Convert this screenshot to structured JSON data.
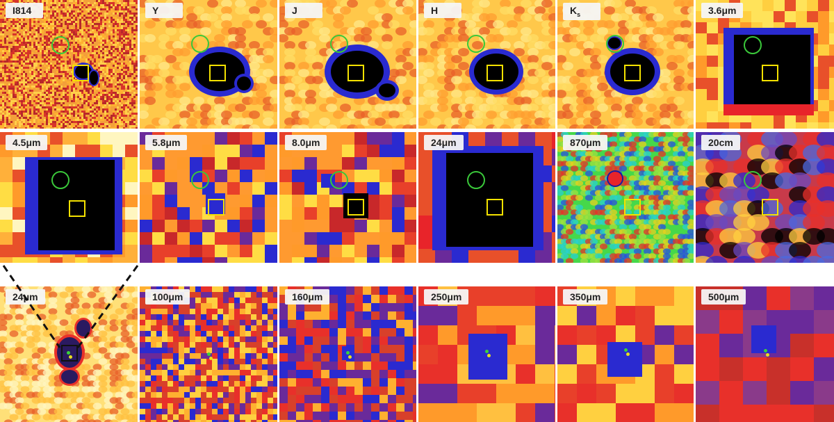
{
  "figure": {
    "row1": [
      {
        "label": "I814",
        "bg": "#f3a03a",
        "noise": [
          "#d8342a",
          "#ffd04a",
          "#b8282a",
          "#ffb030"
        ]
      },
      {
        "label": "Y",
        "bg": "#ffc84a",
        "noise": [
          "#ffdd66",
          "#ff9e30",
          "#e8602a"
        ]
      },
      {
        "label": "J",
        "bg": "#ffc84a",
        "noise": [
          "#ffdd66",
          "#ff9e30",
          "#e8602a"
        ]
      },
      {
        "label": "H",
        "bg": "#ffc84a",
        "noise": [
          "#ffdd66",
          "#ff9e30",
          "#e8602a"
        ]
      },
      {
        "label": "K",
        "label_sub": "s",
        "bg": "#ffc84a",
        "noise": [
          "#ffdd66",
          "#ff9e30",
          "#e8602a"
        ]
      },
      {
        "label": "3.6μm",
        "bg": "#ffcf40",
        "noise": [
          "#ffe35a",
          "#ff9a2a",
          "#e8502a"
        ]
      }
    ],
    "row2": [
      {
        "label": "4.5μm",
        "bg": "#ffb03a"
      },
      {
        "label": "5.8μm",
        "bg": "#ff9a30"
      },
      {
        "label": "8.0μm",
        "bg": "#ff9a30"
      },
      {
        "label": "24μm",
        "bg": "#e8502a"
      },
      {
        "label": "870μm",
        "bg": "#46d84a"
      },
      {
        "label": "20cm",
        "bg": "#c83a4a"
      }
    ],
    "row3": [
      {
        "label": "24μm",
        "bg": "#ffe078"
      },
      {
        "label": "100μm",
        "bg": "#d8402a"
      },
      {
        "label": "160μm",
        "bg": "#d8402a"
      },
      {
        "label": "250μm",
        "bg": "#e8402a"
      },
      {
        "label": "350μm",
        "bg": "#e8402a"
      },
      {
        "label": "500μm",
        "bg": "#c8302a"
      }
    ],
    "colors": {
      "circle": "#3ac83a",
      "square": "#f5e200",
      "source_core": "#000000",
      "source_halo": "#2a2ad0"
    }
  }
}
